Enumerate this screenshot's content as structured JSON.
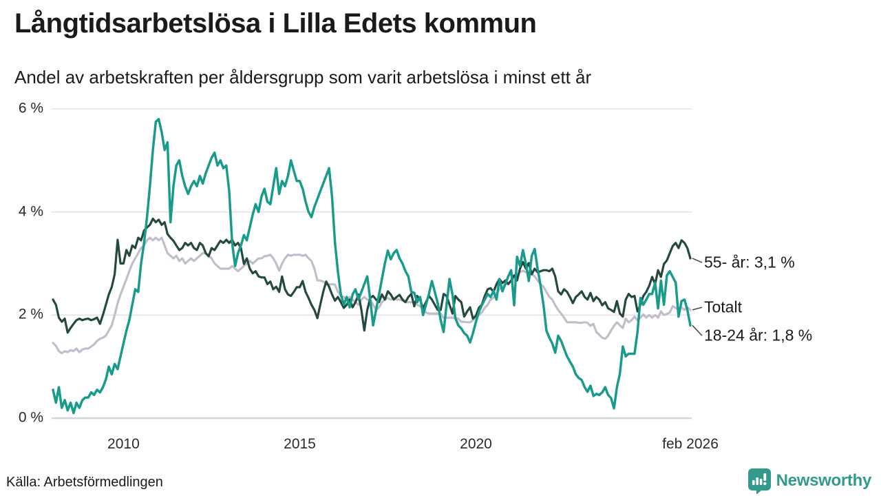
{
  "header": {
    "title": "Långtidsarbetslösa i Lilla Edets kommun",
    "subtitle": "Andel av arbetskraften per åldersgrupp som varit arbetslösa i minst ett år"
  },
  "footer": {
    "source": "Källa: Arbetsförmedlingen",
    "brand_name": "Newsworthy",
    "brand_color": "#33998D"
  },
  "colors": {
    "grid": "#E4E2E8",
    "grid_zero": "#D7D5DC",
    "connector": "#444444"
  },
  "annotations": [
    {
      "label": "55- år: 3,1 %",
      "series": "55- år",
      "series_end_value": 3.1,
      "label_value": 3.02
    },
    {
      "label": "Totalt",
      "series": "Totalt",
      "series_end_value": 2.1,
      "label_value": 2.15
    },
    {
      "label": "18-24 år: 1,8 %",
      "series": "18-24 år",
      "series_end_value": 1.8,
      "label_value": 1.6
    }
  ],
  "chart_data": {
    "type": "line",
    "title": "Långtidsarbetslösa i Lilla Edets kommun",
    "xlabel": "",
    "ylabel": "Andel av arbetskraften (%)",
    "x_start": 2008.0,
    "x_end": 2026.0833,
    "x_resolution": "monthly",
    "ylim": [
      0,
      6
    ],
    "grid": "horizontal",
    "yticks": [
      {
        "label": "0 %",
        "value": 0
      },
      {
        "label": "2 %",
        "value": 2
      },
      {
        "label": "4 %",
        "value": 4
      },
      {
        "label": "6 %",
        "value": 6
      }
    ],
    "xticks": [
      {
        "label": "2010",
        "year": 2010
      },
      {
        "label": "2015",
        "year": 2015
      },
      {
        "label": "2020",
        "year": 2020
      },
      {
        "label": "feb 2026",
        "year": 2026.0833
      }
    ],
    "series": [
      {
        "name": "Totalt",
        "color": "#C1BECC",
        "width": 3.2,
        "values": [
          1.46,
          1.4,
          1.3,
          1.26,
          1.3,
          1.28,
          1.32,
          1.3,
          1.35,
          1.28,
          1.33,
          1.35,
          1.35,
          1.39,
          1.43,
          1.5,
          1.54,
          1.56,
          1.6,
          1.7,
          1.8,
          2.0,
          2.23,
          2.4,
          2.55,
          2.7,
          2.85,
          3.0,
          3.1,
          3.2,
          3.3,
          3.35,
          3.45,
          3.5,
          3.45,
          3.5,
          3.45,
          3.5,
          3.35,
          3.2,
          3.15,
          3.1,
          3.15,
          3.05,
          3.1,
          3.0,
          3.05,
          3.1,
          3.05,
          3.1,
          3.15,
          3.2,
          3.2,
          3.15,
          3.1,
          3.0,
          2.95,
          2.9,
          2.9,
          2.9,
          2.9,
          2.95,
          2.9,
          2.85,
          2.9,
          2.95,
          3.0,
          3.05,
          3.0,
          3.05,
          3.1,
          3.1,
          3.14,
          3.15,
          3.17,
          3.1,
          3.0,
          2.86,
          3.0,
          3.1,
          3.17,
          3.15,
          3.17,
          3.17,
          3.17,
          3.15,
          3.17,
          3.1,
          3.05,
          2.9,
          2.67,
          2.67,
          2.65,
          2.6,
          2.59,
          2.6,
          2.59,
          2.45,
          2.37,
          2.35,
          2.3,
          2.35,
          2.3,
          2.25,
          2.2,
          2.3,
          2.35,
          2.3,
          2.3,
          2.2,
          2.1,
          2.15,
          2.25,
          2.3,
          2.33,
          2.3,
          2.33,
          2.3,
          2.3,
          2.28,
          2.25,
          2.25,
          2.25,
          2.25,
          2.2,
          2.17,
          2.13,
          2.05,
          2.03,
          2.03,
          2.03,
          2.03,
          2.03,
          1.94,
          1.95,
          1.95,
          1.95,
          1.95,
          1.93,
          1.87,
          1.87,
          1.86,
          1.86,
          1.9,
          1.97,
          2.0,
          2.05,
          2.14,
          2.2,
          2.3,
          2.34,
          2.4,
          2.5,
          2.55,
          2.6,
          2.62,
          2.66,
          2.7,
          2.78,
          2.83,
          2.86,
          2.83,
          2.83,
          2.8,
          2.75,
          2.67,
          2.6,
          2.55,
          2.45,
          2.35,
          2.3,
          2.19,
          2.1,
          2.03,
          1.95,
          1.86,
          1.86,
          1.86,
          1.86,
          1.85,
          1.85,
          1.86,
          1.85,
          1.79,
          1.83,
          1.67,
          1.62,
          1.56,
          1.54,
          1.6,
          1.7,
          1.79,
          1.86,
          1.8,
          1.75,
          1.93,
          1.86,
          1.9,
          1.97,
          1.9,
          1.95,
          2.01,
          1.95,
          2.0,
          1.95,
          2.0,
          1.95,
          2.07,
          2.0,
          2.02,
          2.05,
          2.17,
          2.14,
          2.1,
          2.15,
          2.1,
          2.15,
          2.1
        ]
      },
      {
        "name": "55- år",
        "color": "#25483F",
        "width": 3.2,
        "values": [
          2.3,
          2.2,
          1.95,
          1.87,
          1.93,
          1.66,
          1.75,
          1.83,
          1.9,
          1.93,
          1.9,
          1.92,
          1.93,
          1.9,
          1.92,
          1.95,
          1.83,
          2.0,
          2.2,
          2.4,
          2.54,
          2.79,
          3.46,
          3.0,
          3.0,
          3.26,
          3.15,
          3.35,
          3.3,
          3.5,
          3.45,
          3.64,
          3.7,
          3.75,
          3.87,
          3.8,
          3.85,
          3.75,
          3.8,
          3.57,
          3.5,
          3.44,
          3.35,
          3.26,
          3.3,
          3.4,
          3.35,
          3.4,
          3.3,
          3.26,
          3.4,
          3.35,
          3.2,
          3.14,
          3.3,
          3.26,
          3.35,
          3.44,
          3.4,
          3.46,
          3.4,
          3.46,
          3.35,
          3.4,
          3.3,
          2.99,
          3.1,
          2.9,
          2.81,
          2.85,
          2.75,
          2.73,
          2.73,
          2.6,
          2.65,
          2.5,
          2.55,
          2.45,
          2.75,
          2.5,
          2.4,
          2.37,
          2.45,
          2.54,
          2.54,
          2.66,
          2.45,
          2.33,
          2.2,
          2.1,
          1.94,
          2.2,
          2.45,
          2.65,
          2.55,
          2.4,
          2.28,
          2.35,
          2.25,
          2.14,
          2.2,
          2.3,
          2.15,
          2.25,
          2.4,
          2.1,
          1.7,
          2.1,
          2.33,
          2.37,
          2.3,
          2.25,
          2.4,
          2.3,
          2.46,
          2.4,
          2.3,
          2.35,
          2.39,
          2.3,
          2.25,
          2.35,
          2.41,
          2.17,
          2.37,
          2.3,
          2.13,
          2.25,
          2.37,
          2.3,
          2.2,
          2.1,
          2.1,
          2.41,
          2.37,
          2.2,
          2.03,
          2.37,
          2.3,
          2.25,
          1.97,
          2.07,
          2.15,
          1.93,
          1.99,
          2.14,
          2.2,
          2.37,
          2.5,
          2.52,
          2.45,
          2.6,
          2.7,
          2.62,
          2.67,
          2.6,
          2.67,
          2.77,
          2.67,
          2.9,
          3.03,
          2.9,
          3.01,
          2.79,
          2.9,
          2.83,
          2.85,
          2.87,
          2.87,
          2.85,
          2.9,
          2.75,
          2.46,
          2.4,
          2.5,
          2.45,
          2.35,
          2.23,
          2.35,
          2.4,
          2.46,
          2.35,
          2.3,
          2.43,
          2.27,
          2.35,
          2.3,
          2.19,
          2.25,
          2.13,
          2.1,
          2.06,
          2.27,
          2.03,
          1.97,
          2.3,
          2.41,
          2.35,
          2.37,
          2.07,
          2.2,
          2.37,
          2.45,
          2.57,
          2.74,
          2.6,
          2.87,
          2.74,
          2.99,
          3.06,
          3.2,
          3.34,
          3.4,
          3.3,
          3.45,
          3.4,
          3.3,
          3.1
        ]
      },
      {
        "name": "18-24 år",
        "color": "#189B8A",
        "width": 3.5,
        "values": [
          0.55,
          0.3,
          0.6,
          0.2,
          0.35,
          0.15,
          0.3,
          0.1,
          0.3,
          0.2,
          0.35,
          0.4,
          0.4,
          0.5,
          0.45,
          0.55,
          0.5,
          0.6,
          0.75,
          1.0,
          0.85,
          1.05,
          0.95,
          1.2,
          1.45,
          1.7,
          1.9,
          2.2,
          2.5,
          2.45,
          3.0,
          3.4,
          3.9,
          4.5,
          5.2,
          5.75,
          5.8,
          5.55,
          5.2,
          5.35,
          3.8,
          4.5,
          4.9,
          5.0,
          4.7,
          4.5,
          4.35,
          4.5,
          4.6,
          4.5,
          4.7,
          4.55,
          4.75,
          4.9,
          5.05,
          5.15,
          4.9,
          5.0,
          4.85,
          4.9,
          4.4,
          3.4,
          2.95,
          3.2,
          3.35,
          3.55,
          3.45,
          3.7,
          3.95,
          4.15,
          4.0,
          4.3,
          4.45,
          4.2,
          4.15,
          4.5,
          4.85,
          4.35,
          4.6,
          4.5,
          4.7,
          5.0,
          4.8,
          4.6,
          4.6,
          4.45,
          4.2,
          4.0,
          3.9,
          4.1,
          4.25,
          4.4,
          4.55,
          4.7,
          4.85,
          4.3,
          3.4,
          2.85,
          2.4,
          2.2,
          2.35,
          2.15,
          2.4,
          2.5,
          2.3,
          2.45,
          2.6,
          2.75,
          2.3,
          1.8,
          2.1,
          2.4,
          2.7,
          3.0,
          3.25,
          3.08,
          3.2,
          3.26,
          3.1,
          3.0,
          2.85,
          2.75,
          2.45,
          2.43,
          2.25,
          2.35,
          2.0,
          2.2,
          2.41,
          2.66,
          2.45,
          2.23,
          1.9,
          1.67,
          2.2,
          2.7,
          2.4,
          1.94,
          1.8,
          1.74,
          1.65,
          1.6,
          1.47,
          1.65,
          1.87,
          2.06,
          2.19,
          2.3,
          2.41,
          2.35,
          2.47,
          2.3,
          2.7,
          2.46,
          2.6,
          2.75,
          2.87,
          2.19,
          3.13,
          2.95,
          3.26,
          3.0,
          2.66,
          3.15,
          3.28,
          2.9,
          2.57,
          2.2,
          1.7,
          1.56,
          1.45,
          1.27,
          1.6,
          1.5,
          1.35,
          1.2,
          1.1,
          1.0,
          0.85,
          0.78,
          0.74,
          0.6,
          0.51,
          0.63,
          0.43,
          0.47,
          0.45,
          0.5,
          0.6,
          0.45,
          0.39,
          0.19,
          0.6,
          0.86,
          1.39,
          1.2,
          1.25,
          1.25,
          1.25,
          1.67,
          2.33,
          2.2,
          2.3,
          2.41,
          2.41,
          2.63,
          2.13,
          2.67,
          2.2,
          2.77,
          2.85,
          2.74,
          2.63,
          1.97,
          2.27,
          2.3,
          2.1,
          1.8
        ]
      }
    ]
  }
}
